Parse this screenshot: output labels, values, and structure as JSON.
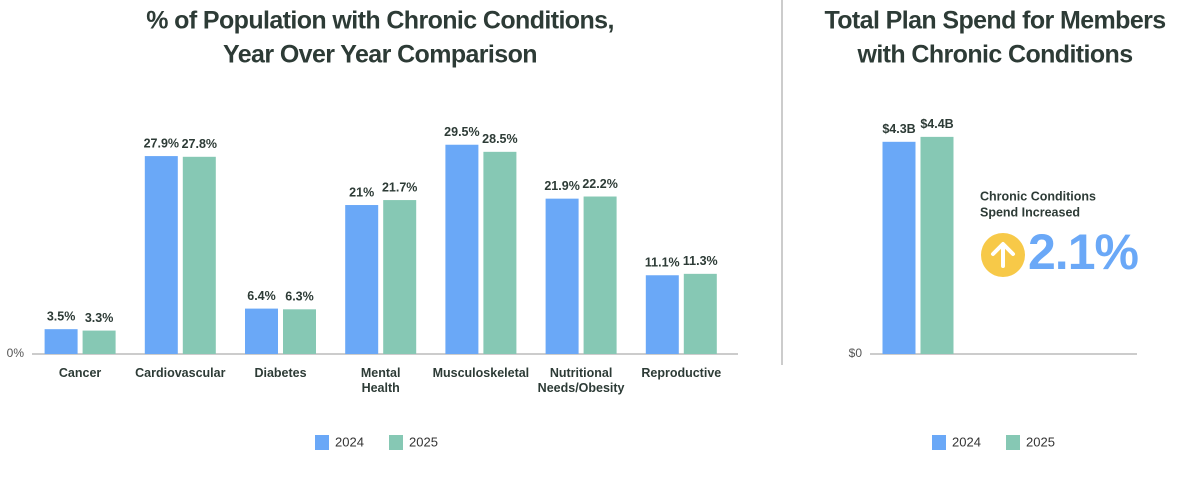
{
  "chart_data": [
    {
      "type": "bar",
      "title": [
        "% of Population with Chronic Conditions,",
        "Year Over Year Comparison"
      ],
      "categories": [
        "Cancer",
        "Cardiovascular",
        "Diabetes",
        "Mental Health",
        "Musculoskeletal",
        "Nutritional Needs/Obesity",
        "Reproductive"
      ],
      "series": [
        {
          "name": "2024",
          "color": "#6aa8f7",
          "values": [
            3.5,
            27.9,
            6.4,
            21,
            29.5,
            21.9,
            11.1
          ],
          "value_labels": [
            "3.5%",
            "27.9%",
            "6.4%",
            "21%",
            "29.5%",
            "21.9%",
            "11.1%"
          ]
        },
        {
          "name": "2025",
          "color": "#86c8b4",
          "values": [
            3.3,
            27.8,
            6.3,
            21.7,
            28.5,
            22.2,
            11.3
          ],
          "value_labels": [
            "3.3%",
            "27.8%",
            "6.3%",
            "21.7%",
            "28.5%",
            "22.2%",
            "11.3%"
          ]
        }
      ],
      "ylim": [
        0,
        32
      ],
      "yticks": [
        {
          "value": 0,
          "label": "0%"
        }
      ],
      "grid": false,
      "legend": "bottom"
    },
    {
      "type": "bar",
      "title": [
        "Total Plan Spend for Members",
        "with Chronic Conditions"
      ],
      "categories": [
        null
      ],
      "series": [
        {
          "name": "2024",
          "color": "#6aa8f7",
          "values": [
            4.3
          ],
          "value_labels": [
            "$4.3B"
          ]
        },
        {
          "name": "2025",
          "color": "#86c8b4",
          "values": [
            4.4
          ],
          "value_labels": [
            "$4.4B"
          ]
        }
      ],
      "ylim": [
        0,
        4.6
      ],
      "yticks": [
        {
          "value": 0,
          "label": "$0"
        }
      ],
      "grid": false,
      "legend": "bottom",
      "annotations": [
        "Chronic Conditions",
        "Spend Increased",
        "2.1%"
      ],
      "annotation_color": "#6aa8f7"
    }
  ]
}
